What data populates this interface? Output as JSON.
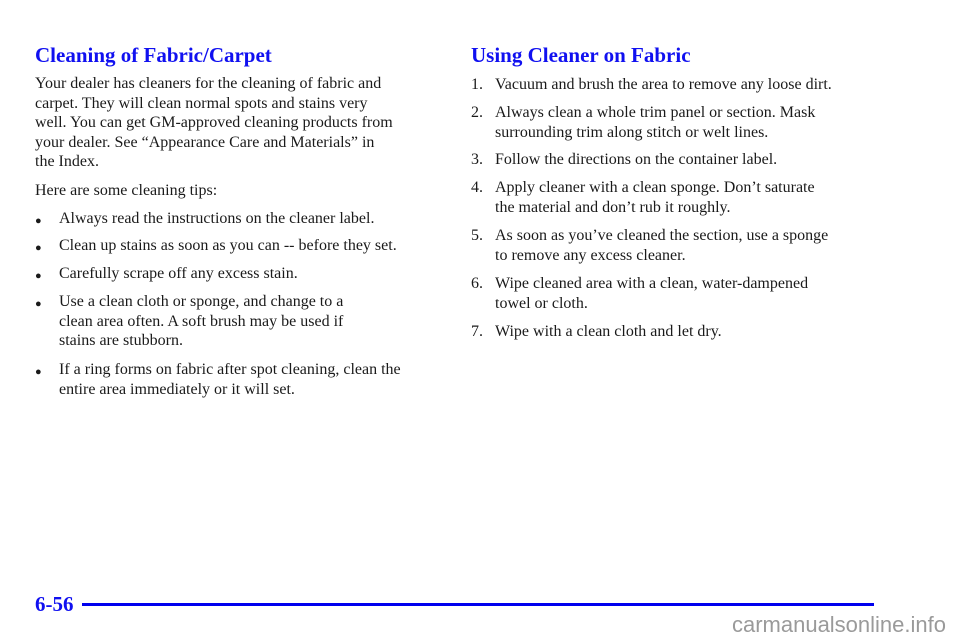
{
  "left": {
    "title": "Cleaning of Fabric/Carpet",
    "intro": "Your dealer has cleaners for the cleaning of fabric and\ncarpet. They will clean normal spots and stains very\nwell. You can get GM-approved cleaning products from\nyour dealer. See “Appearance Care and Materials” in\nthe Index.",
    "tips_intro": "Here are some cleaning tips:",
    "bullet_glyph": "●",
    "bullets": [
      "Always read the instructions on the cleaner label.",
      "Clean up stains as soon as you can -- before they set.",
      "Carefully scrape off any excess stain.",
      "Use a clean cloth or sponge, and change to a\nclean area often. A soft brush may be used if\nstains are stubborn.",
      "If a ring forms on fabric after spot cleaning, clean the\nentire area immediately or it will set."
    ]
  },
  "right": {
    "title": "Using Cleaner on Fabric",
    "steps": [
      {
        "num": "1.",
        "text": "Vacuum and brush the area to remove any loose dirt."
      },
      {
        "num": "2.",
        "text": "Always clean a whole trim panel or section. Mask\nsurrounding trim along stitch or welt lines."
      },
      {
        "num": "3.",
        "text": "Follow the directions on the container label."
      },
      {
        "num": "4.",
        "text": "Apply cleaner with a clean sponge. Don’t saturate\nthe material and don’t rub it roughly."
      },
      {
        "num": "5.",
        "text": "As soon as you’ve cleaned the section, use a sponge\nto remove any excess cleaner."
      },
      {
        "num": "6.",
        "text": "Wipe cleaned area with a clean, water-dampened\ntowel or cloth."
      },
      {
        "num": "7.",
        "text": "Wipe with a clean cloth and let dry."
      }
    ]
  },
  "footer": {
    "page_number": "6-56",
    "watermark": "carmanualsonline.info",
    "rule_color": "#0000ee",
    "heading_color": "#1010f0"
  }
}
